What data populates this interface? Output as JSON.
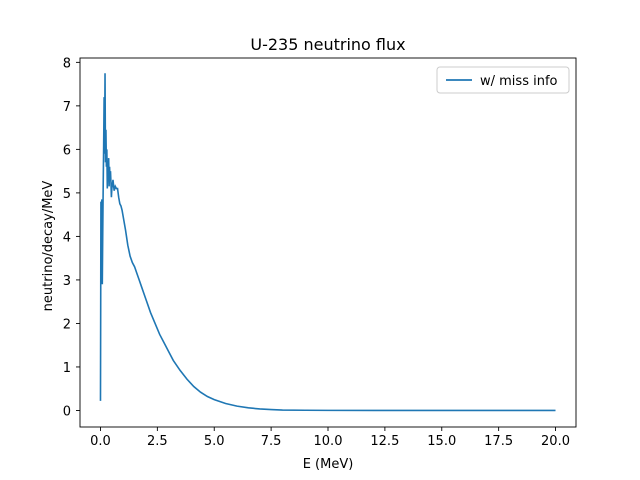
{
  "chart_data": {
    "type": "line",
    "title": "U-235 neutrino flux",
    "xlabel": "E (MeV)",
    "ylabel": "neutrino/decay/MeV",
    "xlim": [
      -0.9,
      20.9
    ],
    "ylim": [
      -0.38,
      8.1
    ],
    "xticks": [
      0,
      2.5,
      5,
      7.5,
      10,
      12.5,
      15,
      17.5,
      20
    ],
    "xtick_labels": [
      "0.0",
      "2.5",
      "5.0",
      "7.5",
      "10.0",
      "12.5",
      "15.0",
      "17.5",
      "20.0"
    ],
    "yticks": [
      0,
      1,
      2,
      3,
      4,
      5,
      6,
      7,
      8
    ],
    "ytick_labels": [
      "0",
      "1",
      "2",
      "3",
      "4",
      "5",
      "6",
      "7",
      "8"
    ],
    "grid": false,
    "legend_position": "top-right",
    "series": [
      {
        "name": "w/ miss info",
        "color": "#1f77b4",
        "x": [
          0.0,
          0.02,
          0.04,
          0.06,
          0.08,
          0.1,
          0.12,
          0.14,
          0.16,
          0.18,
          0.2,
          0.22,
          0.24,
          0.26,
          0.28,
          0.3,
          0.32,
          0.34,
          0.36,
          0.38,
          0.4,
          0.42,
          0.44,
          0.46,
          0.48,
          0.5,
          0.55,
          0.6,
          0.65,
          0.7,
          0.75,
          0.8,
          0.85,
          0.9,
          0.95,
          1.0,
          1.1,
          1.2,
          1.3,
          1.4,
          1.5,
          1.6,
          1.7,
          1.8,
          1.9,
          2.0,
          2.2,
          2.4,
          2.6,
          2.8,
          3.0,
          3.2,
          3.5,
          3.8,
          4.1,
          4.4,
          4.7,
          5.0,
          5.5,
          6.0,
          6.5,
          7.0,
          7.5,
          8.0,
          9.0,
          10.0,
          12.0,
          14.0,
          16.0,
          18.0,
          20.0
        ],
        "y": [
          0.22,
          4.8,
          3.6,
          4.85,
          2.9,
          4.1,
          5.2,
          6.1,
          7.2,
          5.9,
          7.75,
          5.7,
          6.45,
          5.6,
          6.0,
          5.1,
          5.7,
          5.4,
          5.8,
          5.15,
          5.6,
          5.3,
          5.5,
          5.25,
          4.9,
          5.1,
          5.3,
          5.05,
          5.15,
          5.1,
          5.1,
          4.9,
          4.75,
          4.7,
          4.6,
          4.45,
          4.15,
          3.8,
          3.55,
          3.4,
          3.3,
          3.15,
          3.0,
          2.85,
          2.7,
          2.55,
          2.25,
          2.0,
          1.75,
          1.55,
          1.35,
          1.15,
          0.92,
          0.72,
          0.55,
          0.42,
          0.32,
          0.25,
          0.16,
          0.1,
          0.06,
          0.035,
          0.02,
          0.01,
          0.005,
          0.002,
          0.0,
          0.0,
          0.0,
          0.0,
          0.0
        ]
      }
    ]
  }
}
